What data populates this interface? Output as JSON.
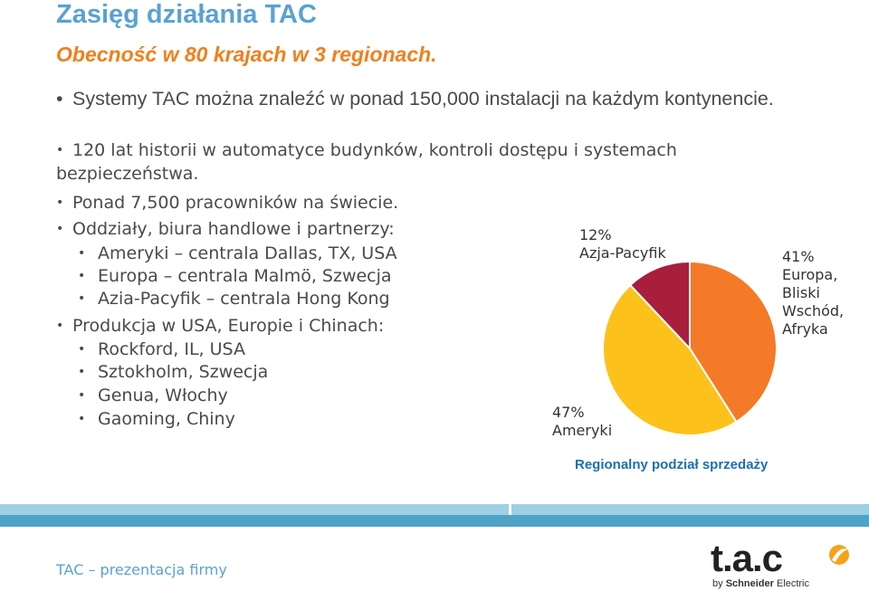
{
  "page": {
    "title": "Zasięg działania TAC",
    "subtitle": "Obecność w 80 krajach w 3 regionach."
  },
  "bullets": {
    "b1": "Systemy TAC można znaleźć w ponad 150,000 instalacji na każdym kontynencie.",
    "b2": "120 lat historii w automatyce budynków, kontroli dostępu i systemach bezpieczeństwa.",
    "b3": "Ponad 7,500 pracowników na świecie.",
    "b4": "Oddziały, biura handlowe i partnerzy:",
    "b4_items": [
      "Ameryki – centrala Dallas, TX, USA",
      "Europa – centrala Malmö, Szwecja",
      "Azia-Pacyfik – centrala Hong Kong"
    ],
    "b5": "Produkcja w USA, Europie i Chinach:",
    "b5_items": [
      "Rockford, IL, USA",
      "Sztokholm, Szwecja",
      "Genua, Włochy",
      "Gaoming, Chiny"
    ]
  },
  "chart_data": {
    "type": "pie",
    "title": "Regionalny podział sprzedaży",
    "slices": [
      {
        "name": "Europa, Bliski Wschód, Afryka",
        "value": 41,
        "pct_label": "41%",
        "label_lines": [
          "Europa,",
          "Bliski",
          "Wschód,",
          "Afryka"
        ],
        "color": "#f47a28"
      },
      {
        "name": "Ameryki",
        "value": 47,
        "pct_label": "47%",
        "label_lines": [
          "Ameryki"
        ],
        "color": "#fcc21b"
      },
      {
        "name": "Azja-Pacyfik",
        "value": 12,
        "pct_label": "12%",
        "label_lines": [
          "Azja-Pacyfik"
        ],
        "color": "#a81f3d"
      }
    ]
  },
  "footer": {
    "text": "TAC – prezentacja firmy",
    "logo_main": "t.a.c",
    "logo_by": "by",
    "logo_brand": "Schneider",
    "logo_brand2": "Electric"
  },
  "colors": {
    "title": "#5aa2d2",
    "subtitle": "#f07f1c",
    "band_light": "#9cd0e2",
    "band_dark": "#4fa3c7"
  }
}
